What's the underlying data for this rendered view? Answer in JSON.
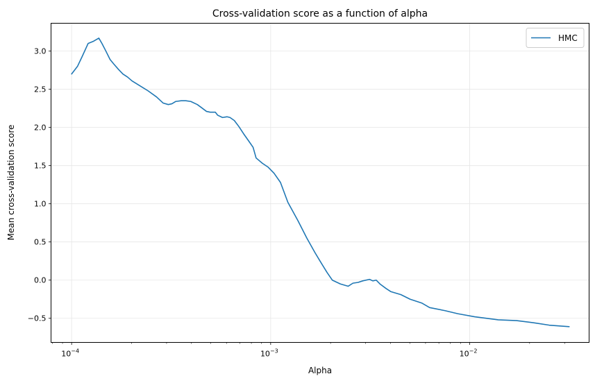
{
  "chart_data": {
    "type": "line",
    "title": "Cross-validation score as a function of alpha",
    "xlabel": "Alpha",
    "ylabel": "Mean cross-validation score",
    "x_scale": "log",
    "xlim": [
      7.88e-05,
      0.0398
    ],
    "ylim": [
      -0.816,
      3.365
    ],
    "grid": true,
    "legend": "top-right",
    "x_ticks": [
      {
        "value": 0.0001,
        "base": "10",
        "exp": "−4"
      },
      {
        "value": 0.001,
        "base": "10",
        "exp": "−3"
      },
      {
        "value": 0.01,
        "base": "10",
        "exp": "−2"
      }
    ],
    "y_ticks": [
      -0.5,
      0.0,
      0.5,
      1.0,
      1.5,
      2.0,
      2.5,
      3.0
    ],
    "y_tick_labels": [
      "−0.5",
      "0.0",
      "0.5",
      "1.0",
      "1.5",
      "2.0",
      "2.5",
      "3.0"
    ],
    "series": [
      {
        "name": "HMC",
        "color": "#1f77b4",
        "x": [
          0.0001,
          0.000107,
          0.000113,
          0.000121,
          0.000129,
          0.000137,
          0.000142,
          0.000148,
          0.000156,
          0.000163,
          0.000172,
          0.000181,
          0.000191,
          0.000201,
          0.000219,
          0.000242,
          0.000267,
          0.000288,
          0.000306,
          0.000319,
          0.000333,
          0.000355,
          0.000375,
          0.000397,
          0.000428,
          0.000449,
          0.000476,
          0.000497,
          0.000527,
          0.000542,
          0.000573,
          0.000603,
          0.000625,
          0.000657,
          0.000693,
          0.00073,
          0.000777,
          0.000816,
          0.000845,
          0.000909,
          0.000971,
          0.00104,
          0.00112,
          0.00122,
          0.00137,
          0.00152,
          0.00167,
          0.00177,
          0.00192,
          0.00204,
          0.00224,
          0.00245,
          0.00259,
          0.00275,
          0.0029,
          0.00314,
          0.00326,
          0.00339,
          0.00354,
          0.0038,
          0.00401,
          0.00451,
          0.00502,
          0.00574,
          0.00629,
          0.00752,
          0.00871,
          0.0106,
          0.0121,
          0.0139,
          0.0172,
          0.0211,
          0.0251,
          0.0316
        ],
        "y": [
          2.7,
          2.8,
          2.93,
          3.1,
          3.13,
          3.17,
          3.1,
          3.01,
          2.89,
          2.83,
          2.76,
          2.7,
          2.66,
          2.61,
          2.55,
          2.48,
          2.4,
          2.32,
          2.3,
          2.31,
          2.34,
          2.35,
          2.35,
          2.34,
          2.3,
          2.26,
          2.21,
          2.2,
          2.2,
          2.16,
          2.13,
          2.14,
          2.13,
          2.09,
          2.01,
          1.92,
          1.82,
          1.74,
          1.6,
          1.53,
          1.48,
          1.4,
          1.28,
          1.02,
          0.78,
          0.55,
          0.36,
          0.25,
          0.1,
          0.0,
          -0.05,
          -0.08,
          -0.04,
          -0.03,
          -0.01,
          0.01,
          -0.01,
          0.0,
          -0.05,
          -0.11,
          -0.15,
          -0.19,
          -0.25,
          -0.3,
          -0.36,
          -0.4,
          -0.44,
          -0.48,
          -0.5,
          -0.52,
          -0.53,
          -0.56,
          -0.59,
          -0.61
        ]
      }
    ]
  }
}
